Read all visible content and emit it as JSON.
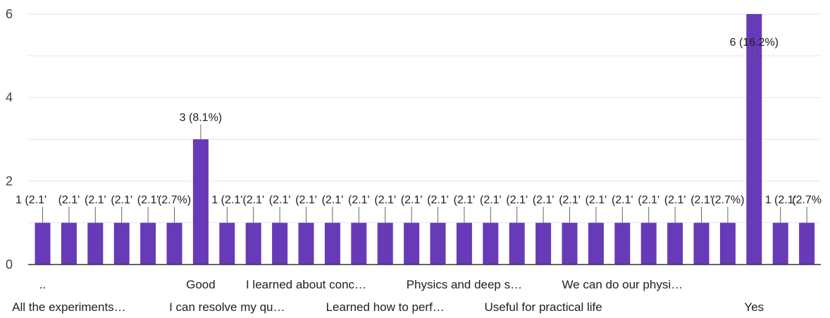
{
  "chart_data": {
    "type": "bar",
    "categories": [
      "..",
      "All the experiments…",
      "",
      "",
      "",
      "",
      "Good",
      "I can resolve my qu…",
      "",
      "",
      "I learned about conc…",
      "",
      "",
      "Learned how to perf…",
      "",
      "",
      "Physics and deep s…",
      "",
      "",
      "Useful for practical life",
      "",
      "",
      "We can do our physi…",
      "",
      "",
      "",
      "",
      "Yes",
      "",
      ""
    ],
    "values": [
      1,
      1,
      1,
      1,
      1,
      1,
      3,
      1,
      1,
      1,
      1,
      1,
      1,
      1,
      1,
      1,
      1,
      1,
      1,
      1,
      1,
      1,
      1,
      1,
      1,
      1,
      1,
      6,
      1,
      1
    ],
    "data_labels": [
      "1 (2.1'",
      "(2.1'",
      "(2.1'",
      "(2.1'",
      "(2.1'",
      "(2.7%)",
      "3 (8.1%)",
      "1 (2.1'",
      "(2.1'",
      "(2.1'",
      "(2.1'",
      "(2.1'",
      "(2.1'",
      "(2.1'",
      "(2.1'",
      "(2.1'",
      "(2.1'",
      "(2.1'",
      "(2.1'",
      "(2.1'",
      "(2.1'",
      "(2.1'",
      "(2.1'",
      "(2.1'",
      "(2.1'",
      "(2.1'",
      "(2.7%)",
      "6 (16.2%)",
      "1 (2.1'",
      "(2.7%"
    ],
    "yticks": [
      0,
      2,
      4,
      6
    ],
    "ylim": [
      0,
      6
    ],
    "grid": true,
    "color": "#673ab7",
    "title": "",
    "xlabel": "",
    "ylabel": ""
  }
}
